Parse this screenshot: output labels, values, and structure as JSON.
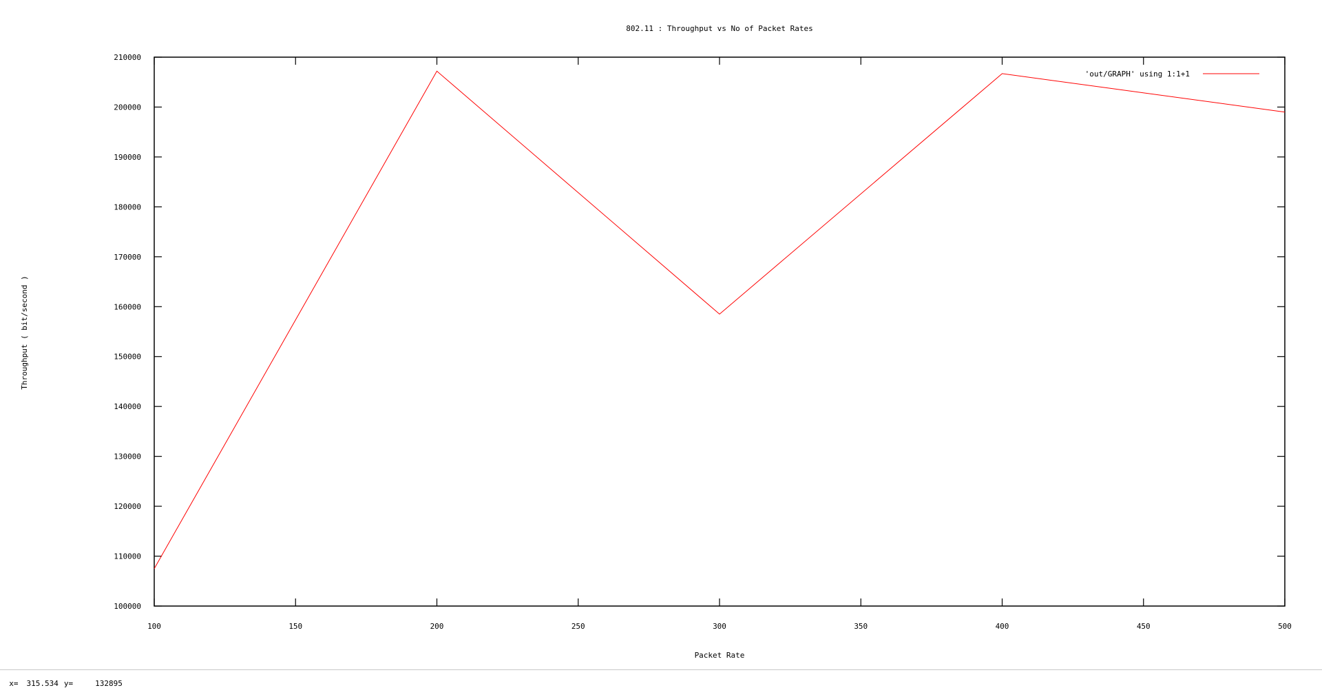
{
  "chart_data": {
    "type": "line",
    "title": "802.11 : Throughput vs No of Packet Rates",
    "xlabel": "Packet Rate",
    "ylabel": "Throughput ( bit/second )",
    "xlim": [
      100,
      500
    ],
    "ylim": [
      100000,
      210000
    ],
    "xticks": [
      100,
      150,
      200,
      250,
      300,
      350,
      400,
      450,
      500
    ],
    "yticks": [
      100000,
      110000,
      120000,
      130000,
      140000,
      150000,
      160000,
      170000,
      180000,
      190000,
      200000,
      210000
    ],
    "grid": false,
    "legend_position": "top-right",
    "series": [
      {
        "name": "'out/GRAPH' using 1:1+1",
        "color": "#ff0000",
        "x": [
          100,
          200,
          300,
          400,
          500
        ],
        "y": [
          107500,
          207200,
          158500,
          206700,
          199000
        ]
      }
    ]
  },
  "status": {
    "x_label": "x=",
    "x_value": "315.534",
    "y_label": "y=",
    "y_value": "132895"
  }
}
